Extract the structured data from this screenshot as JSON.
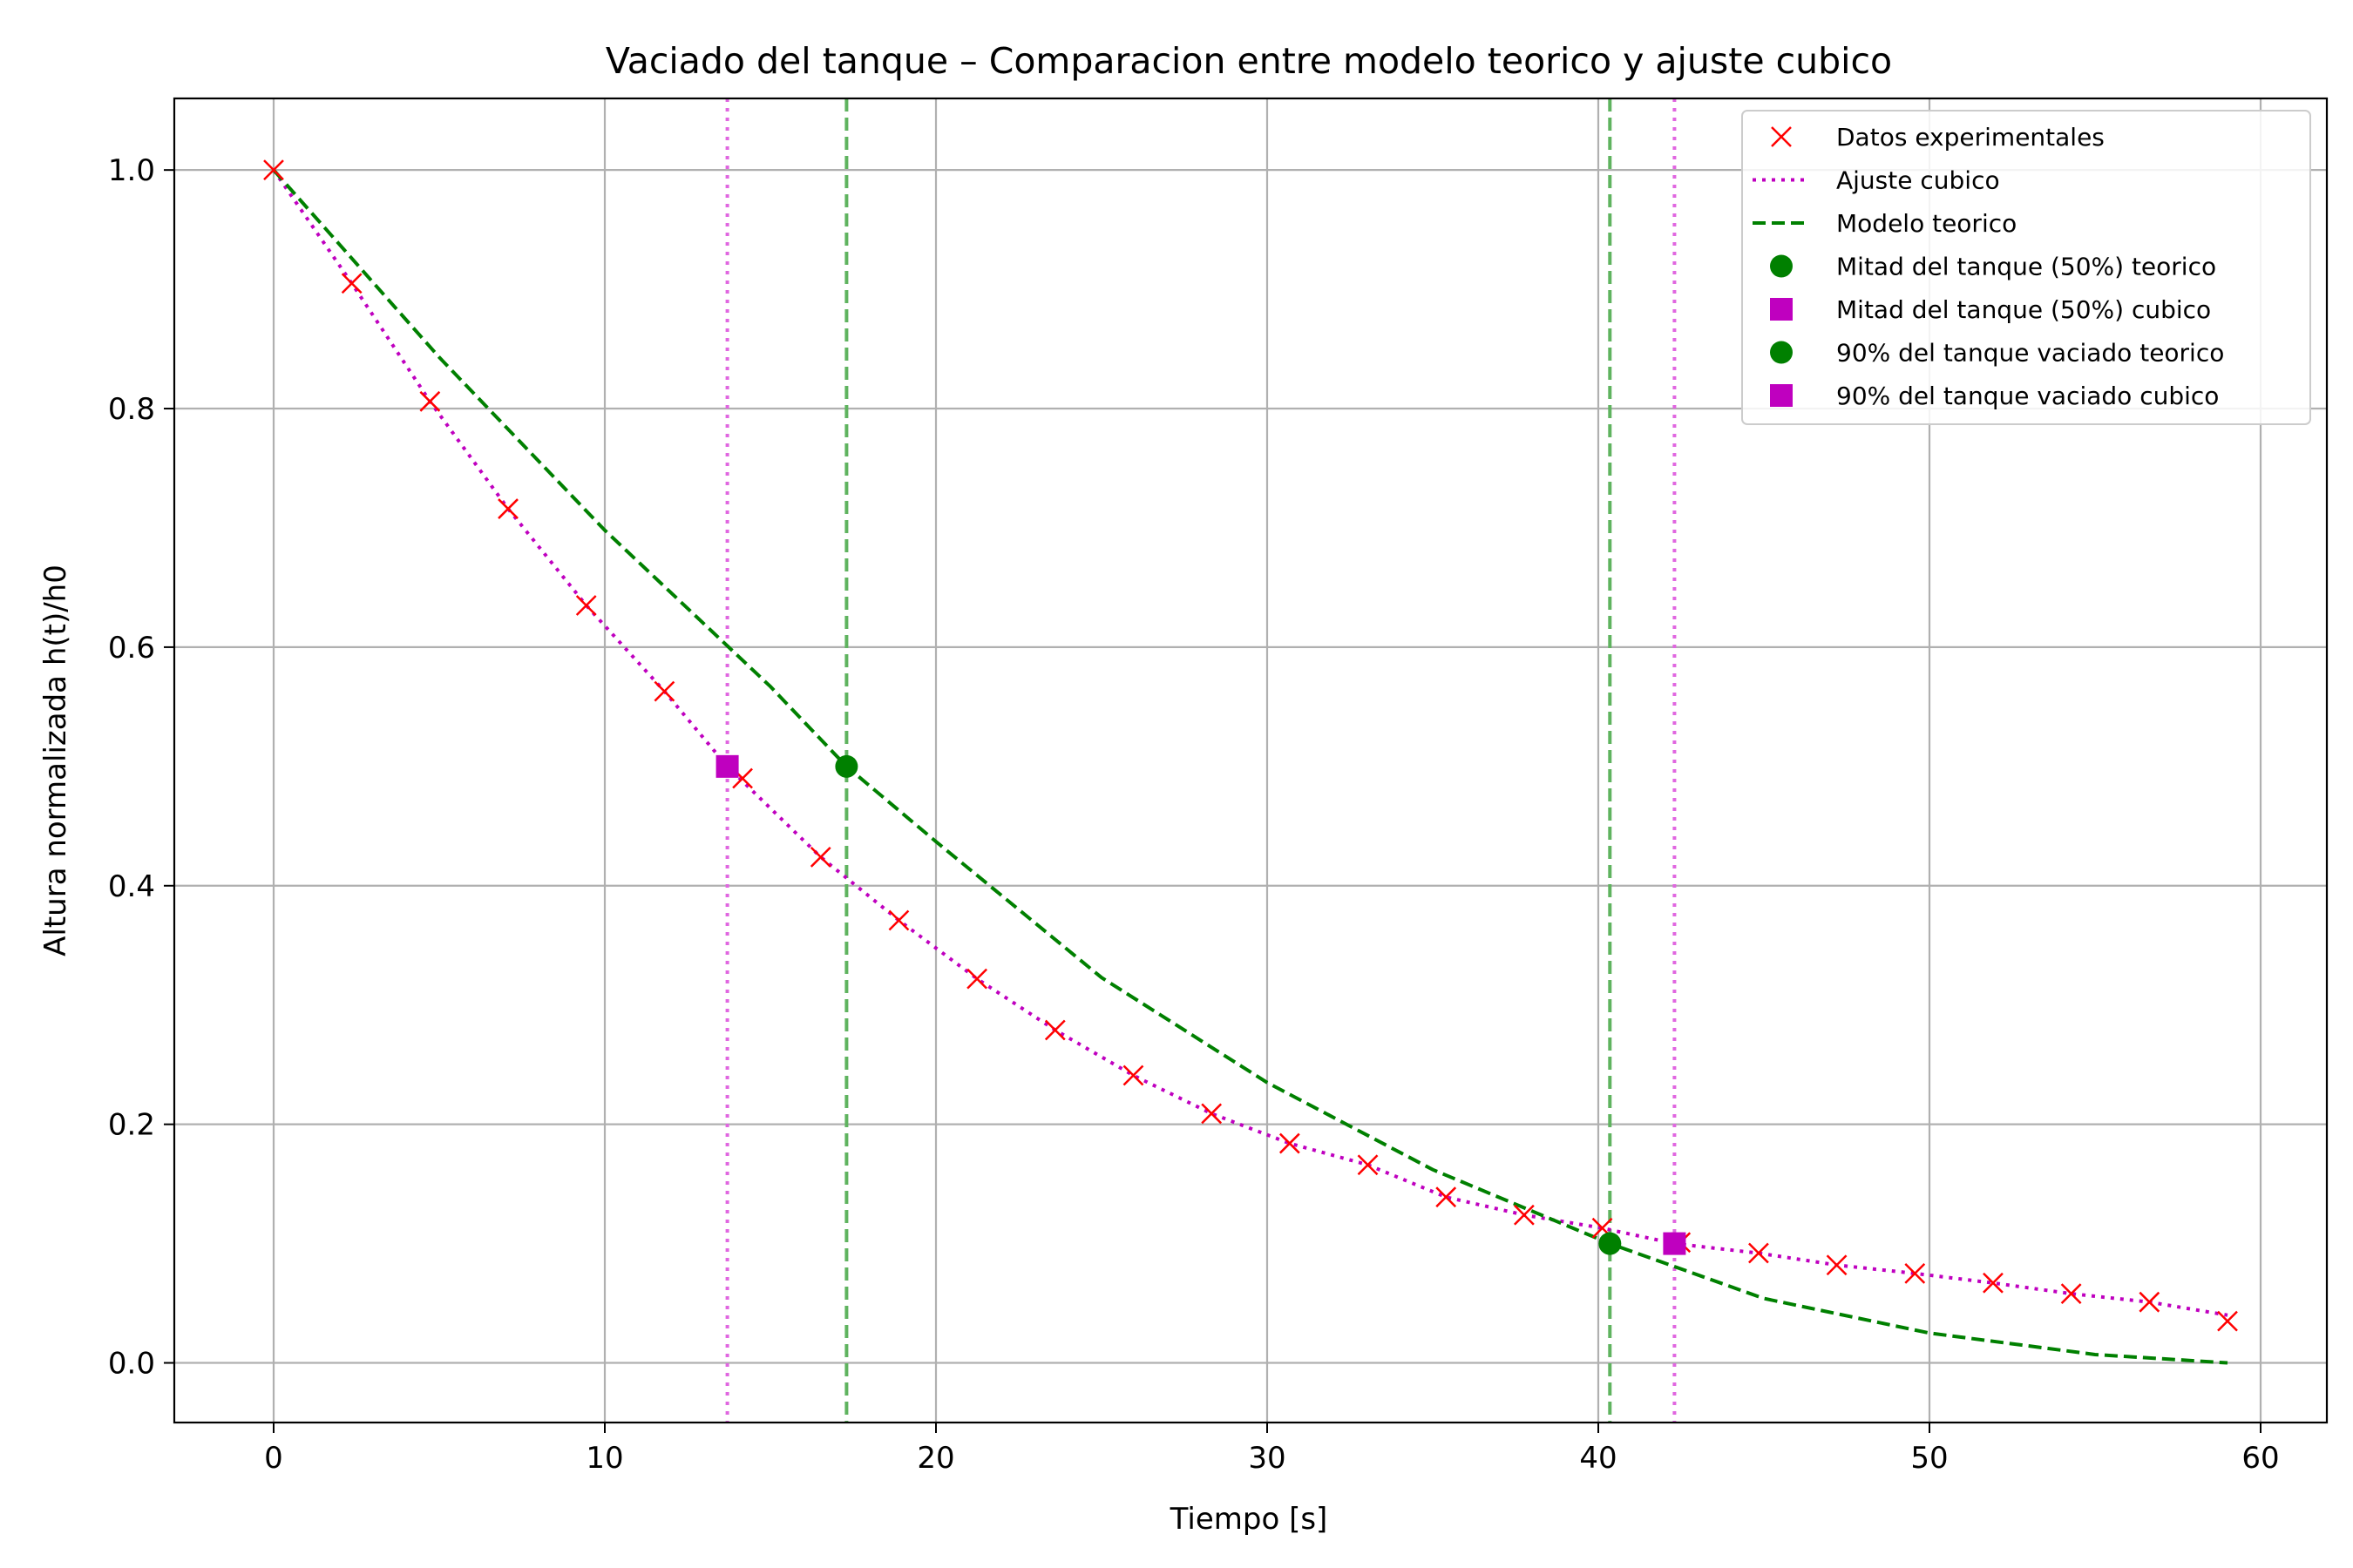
{
  "chart_data": {
    "type": "line",
    "title": "Vaciado del tanque – Comparacion entre modelo teorico y ajuste cubico",
    "xlabel": "Tiempo [s]",
    "ylabel": "Altura normalizada h(t)/h0",
    "xlim": [
      -3,
      62
    ],
    "ylim": [
      -0.05,
      1.06
    ],
    "xticks": [
      0,
      10,
      20,
      30,
      40,
      50,
      60
    ],
    "yticks": [
      0.0,
      0.2,
      0.4,
      0.6,
      0.8,
      1.0
    ],
    "xtick_labels": [
      "0",
      "10",
      "20",
      "30",
      "40",
      "50",
      "60"
    ],
    "ytick_labels": [
      "0.0",
      "0.2",
      "0.4",
      "0.6",
      "0.8",
      "1.0"
    ],
    "grid": true,
    "legend_position": "top-right",
    "colors": {
      "experimental": "#ff0000",
      "cubic": "#bf00bf",
      "theoretical": "#008000",
      "vline_theoretical": "#5fb35f",
      "vline_cubic": "#e066e0"
    },
    "series": [
      {
        "name": "Datos experimentales",
        "style": "x-markers",
        "x": [
          0,
          2.36,
          4.72,
          7.08,
          9.44,
          11.8,
          14.16,
          16.52,
          18.88,
          21.24,
          23.6,
          25.96,
          28.32,
          30.68,
          33.04,
          35.4,
          37.76,
          40.12,
          42.48,
          44.84,
          47.2,
          49.56,
          51.92,
          54.28,
          56.64,
          59.0
        ],
        "y": [
          1.0,
          0.905,
          0.806,
          0.716,
          0.635,
          0.563,
          0.49,
          0.424,
          0.371,
          0.322,
          0.279,
          0.241,
          0.209,
          0.184,
          0.166,
          0.139,
          0.124,
          0.113,
          0.101,
          0.092,
          0.082,
          0.075,
          0.067,
          0.058,
          0.051,
          0.035
        ]
      },
      {
        "name": "Ajuste cubico",
        "style": "dotted",
        "x": [
          0,
          2.36,
          4.72,
          7.08,
          9.44,
          11.8,
          13.7,
          16.52,
          18.88,
          21.24,
          23.6,
          25.96,
          28.32,
          30.68,
          33.04,
          35.4,
          37.76,
          40.12,
          42.3,
          44.84,
          47.2,
          49.56,
          51.92,
          54.28,
          56.64,
          59.0
        ],
        "y": [
          1.0,
          0.905,
          0.806,
          0.716,
          0.635,
          0.563,
          0.5,
          0.424,
          0.371,
          0.322,
          0.279,
          0.241,
          0.209,
          0.184,
          0.166,
          0.139,
          0.124,
          0.113,
          0.1,
          0.092,
          0.082,
          0.075,
          0.067,
          0.058,
          0.051,
          0.04
        ]
      },
      {
        "name": "Modelo teorico",
        "style": "dashed",
        "x": [
          0,
          5,
          10,
          15,
          17.3,
          20,
          25,
          30,
          35,
          40.35,
          45,
          50,
          55,
          59
        ],
        "y": [
          1.0,
          0.843,
          0.698,
          0.567,
          0.5,
          0.437,
          0.323,
          0.235,
          0.162,
          0.1,
          0.054,
          0.025,
          0.007,
          0.0
        ]
      }
    ],
    "key_points": [
      {
        "name": "Mitad del tanque (50%) teorico",
        "marker": "circle",
        "color": "#008000",
        "x": 17.3,
        "y": 0.5
      },
      {
        "name": "Mitad del tanque (50%) cubico",
        "marker": "square",
        "color": "#bf00bf",
        "x": 13.7,
        "y": 0.5
      },
      {
        "name": "90% del tanque vaciado teorico",
        "marker": "circle",
        "color": "#008000",
        "x": 40.35,
        "y": 0.1
      },
      {
        "name": "90% del tanque vaciado cubico",
        "marker": "square",
        "color": "#bf00bf",
        "x": 42.3,
        "y": 0.1
      }
    ],
    "vertical_lines": [
      {
        "x": 13.7,
        "style": "dotted",
        "color": "#e066e0"
      },
      {
        "x": 17.3,
        "style": "dashed",
        "color": "#5fb35f"
      },
      {
        "x": 40.35,
        "style": "dashed",
        "color": "#5fb35f"
      },
      {
        "x": 42.3,
        "style": "dotted",
        "color": "#e066e0"
      }
    ],
    "legend": [
      "Datos experimentales",
      "Ajuste cubico",
      "Modelo teorico",
      "Mitad del tanque (50%) teorico",
      "Mitad del tanque (50%) cubico",
      "90% del tanque vaciado teorico",
      "90% del tanque vaciado cubico"
    ]
  }
}
